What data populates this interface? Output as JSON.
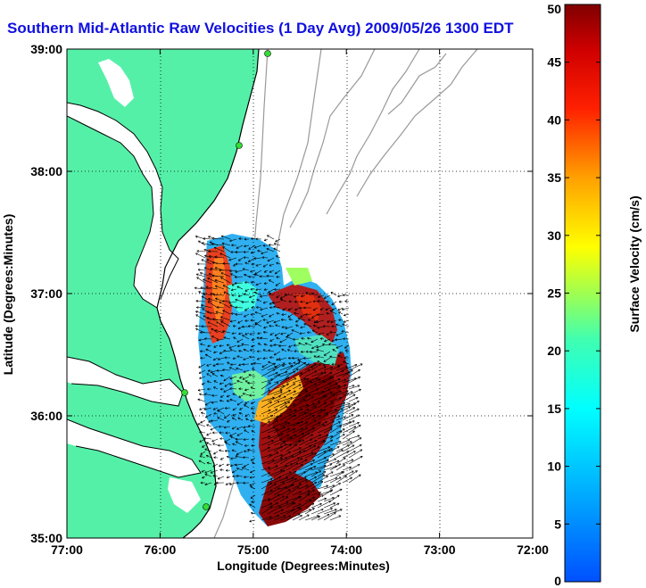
{
  "title": "Southern Mid-Atlantic Raw Velocities (1 Day Avg) 2009/05/26 1300 EDT",
  "map": {
    "xlabel": "Longitude (Degrees:Minutes)",
    "ylabel": "Latitude (Degrees:Minutes)",
    "x_ticks": [
      "77:00",
      "76:00",
      "75:00",
      "74:00",
      "73:00",
      "72:00"
    ],
    "y_ticks": [
      "39:00",
      "38:00",
      "37:00",
      "36:00",
      "35:00"
    ],
    "grid": "dotted",
    "land_color": "#55f0a8",
    "station_color": "#33dd33"
  },
  "colorbar": {
    "label": "Surface Velocity (cm/s)",
    "ticks": [
      "50",
      "45",
      "40",
      "35",
      "30",
      "25",
      "20",
      "15",
      "10",
      "5",
      "0"
    ],
    "min": 0,
    "max": 50,
    "colormap": "jet"
  }
}
